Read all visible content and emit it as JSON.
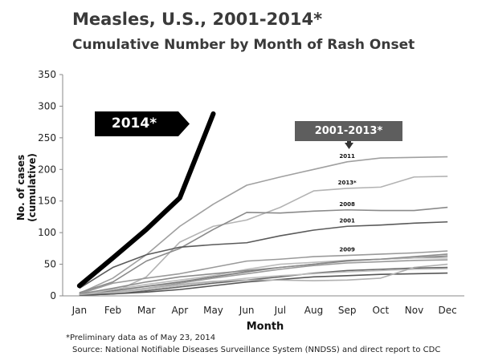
{
  "chart_data": {
    "type": "line",
    "title": "Measles, U.S., 2001-2014*",
    "subtitle": "Cumulative Number by Month of Rash Onset",
    "xlabel": "Month",
    "ylabel": "No. of cases (cumulative)",
    "ylim": [
      0,
      350
    ],
    "yticks": [
      0,
      50,
      100,
      150,
      200,
      250,
      300,
      350
    ],
    "categories": [
      "Jan",
      "Feb",
      "Mar",
      "Apr",
      "May",
      "Jun",
      "Jul",
      "Aug",
      "Sep",
      "Oct",
      "Nov",
      "Dec"
    ],
    "grid": false,
    "highlight_series": {
      "name": "2014*",
      "color": "#000000",
      "values": [
        16,
        60,
        105,
        155,
        288
      ]
    },
    "background_series_color": "#a9a9a9",
    "series": [
      {
        "name": "2011",
        "label_shown": true,
        "color": "#a0a0a0",
        "values": [
          4,
          28,
          65,
          110,
          145,
          175,
          188,
          200,
          212,
          218,
          219,
          220
        ]
      },
      {
        "name": "2013*",
        "label_shown": true,
        "color": "#b3b3b3",
        "values": [
          3,
          5,
          30,
          85,
          110,
          120,
          140,
          166,
          170,
          172,
          188,
          189
        ]
      },
      {
        "name": "2008",
        "label_shown": true,
        "color": "#8a8a8a",
        "values": [
          5,
          22,
          55,
          75,
          105,
          132,
          131,
          134,
          136,
          135,
          135,
          140
        ]
      },
      {
        "name": "2001",
        "label_shown": true,
        "color": "#5a5a5a",
        "values": [
          12,
          45,
          65,
          77,
          81,
          84,
          95,
          104,
          110,
          112,
          115,
          117
        ]
      },
      {
        "name": "2009",
        "label_shown": true,
        "color": "#9a9a9a",
        "values": [
          3,
          20,
          28,
          35,
          45,
          55,
          58,
          62,
          64,
          66,
          68,
          71
        ]
      },
      {
        "name": "",
        "label_shown": false,
        "color": "#7a7a7a",
        "values": [
          2,
          8,
          15,
          22,
          30,
          38,
          45,
          50,
          55,
          58,
          60,
          63
        ]
      },
      {
        "name": "",
        "label_shown": false,
        "color": "#9a9a9a",
        "values": [
          1,
          5,
          12,
          20,
          28,
          35,
          42,
          48,
          52,
          54,
          56,
          57
        ]
      },
      {
        "name": "",
        "label_shown": false,
        "color": "#bbbbbb",
        "values": [
          2,
          10,
          18,
          25,
          32,
          42,
          50,
          53,
          56,
          58,
          60,
          60
        ]
      },
      {
        "name": "",
        "label_shown": false,
        "color": "#666666",
        "values": [
          1,
          3,
          8,
          14,
          20,
          25,
          30,
          36,
          40,
          42,
          44,
          45
        ]
      },
      {
        "name": "",
        "label_shown": false,
        "color": "#8c8c8c",
        "values": [
          3,
          12,
          22,
          30,
          35,
          40,
          45,
          50,
          56,
          58,
          62,
          66
        ]
      },
      {
        "name": "",
        "label_shown": false,
        "color": "#c0c0c0",
        "values": [
          1,
          4,
          10,
          16,
          22,
          28,
          32,
          35,
          38,
          40,
          42,
          43
        ]
      },
      {
        "name": "",
        "label_shown": false,
        "color": "#555555",
        "values": [
          1,
          3,
          6,
          10,
          16,
          22,
          26,
          30,
          32,
          34,
          35,
          36
        ]
      },
      {
        "name": "",
        "label_shown": false,
        "color": "#b0b0b0",
        "values": [
          2,
          6,
          12,
          18,
          23,
          25,
          25,
          24,
          25,
          28,
          45,
          50
        ]
      }
    ]
  },
  "callouts": {
    "highlight_label": "2014*",
    "range_label": "2001-2013*"
  },
  "footnote": "*Preliminary data as of May 23, 2014",
  "source": "Source:  National Notifiable Diseases Surveillance System (NNDSS)  and direct report to CDC"
}
